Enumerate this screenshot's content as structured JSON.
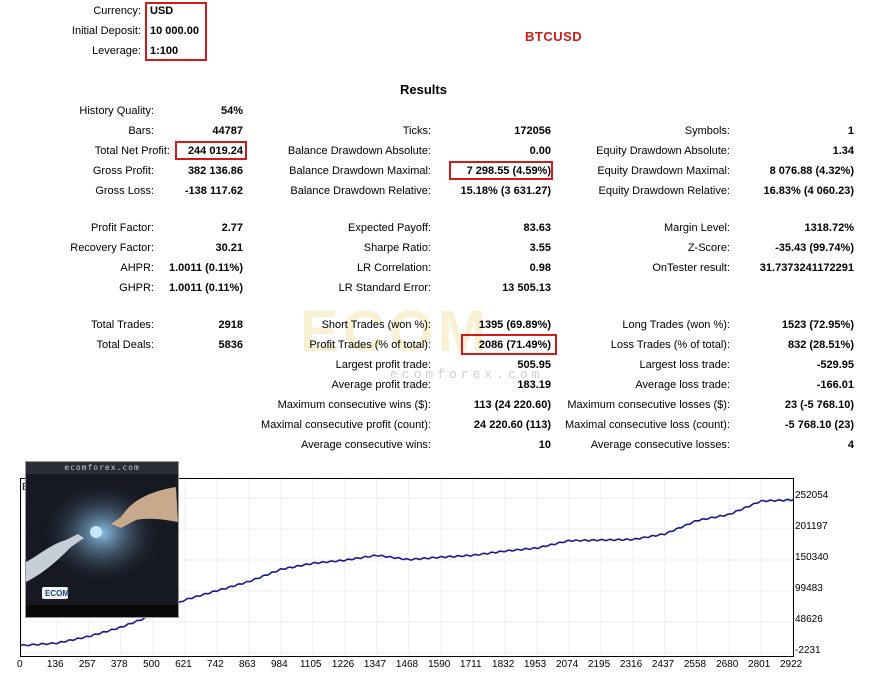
{
  "header": {
    "currency_label": "Currency:",
    "currency_value": "USD",
    "deposit_label": "Initial Deposit:",
    "deposit_value": "10 000.00",
    "leverage_label": "Leverage:",
    "leverage_value": "1:100",
    "symbol": "BTCUSD",
    "results_title": "Results"
  },
  "stats": {
    "history_quality": {
      "label": "History Quality:",
      "value": "54%"
    },
    "bars": {
      "label": "Bars:",
      "value": "44787"
    },
    "ticks": {
      "label": "Ticks:",
      "value": "172056"
    },
    "symbols": {
      "label": "Symbols:",
      "value": "1"
    },
    "total_net_profit": {
      "label": "Total Net Profit:",
      "value": "244 019.24"
    },
    "balance_dd_abs": {
      "label": "Balance Drawdown Absolute:",
      "value": "0.00"
    },
    "equity_dd_abs": {
      "label": "Equity Drawdown Absolute:",
      "value": "1.34"
    },
    "gross_profit": {
      "label": "Gross Profit:",
      "value": "382 136.86"
    },
    "balance_dd_max": {
      "label": "Balance Drawdown Maximal:",
      "value": "7 298.55 (4.59%)"
    },
    "equity_dd_max": {
      "label": "Equity Drawdown Maximal:",
      "value": "8 076.88 (4.32%)"
    },
    "gross_loss": {
      "label": "Gross Loss:",
      "value": "-138 117.62"
    },
    "balance_dd_rel": {
      "label": "Balance Drawdown Relative:",
      "value": "15.18% (3 631.27)"
    },
    "equity_dd_rel": {
      "label": "Equity Drawdown Relative:",
      "value": "16.83% (4 060.23)"
    },
    "profit_factor": {
      "label": "Profit Factor:",
      "value": "2.77"
    },
    "expected_payoff": {
      "label": "Expected Payoff:",
      "value": "83.63"
    },
    "margin_level": {
      "label": "Margin Level:",
      "value": "1318.72%"
    },
    "recovery_factor": {
      "label": "Recovery Factor:",
      "value": "30.21"
    },
    "sharpe_ratio": {
      "label": "Sharpe Ratio:",
      "value": "3.55"
    },
    "z_score": {
      "label": "Z-Score:",
      "value": "-35.43 (99.74%)"
    },
    "ahpr": {
      "label": "AHPR:",
      "value": "1.0011 (0.11%)"
    },
    "lr_correlation": {
      "label": "LR Correlation:",
      "value": "0.98"
    },
    "ontester": {
      "label": "OnTester result:",
      "value": "31.7373241172291"
    },
    "ghpr": {
      "label": "GHPR:",
      "value": "1.0011 (0.11%)"
    },
    "lr_std_error": {
      "label": "LR Standard Error:",
      "value": "13 505.13"
    },
    "total_trades": {
      "label": "Total Trades:",
      "value": "2918"
    },
    "short_trades": {
      "label": "Short Trades (won %):",
      "value": "1395 (69.89%)"
    },
    "long_trades": {
      "label": "Long Trades (won %):",
      "value": "1523 (72.95%)"
    },
    "total_deals": {
      "label": "Total Deals:",
      "value": "5836"
    },
    "profit_trades": {
      "label": "Profit Trades (% of total):",
      "value": "2086 (71.49%)"
    },
    "loss_trades": {
      "label": "Loss Trades (% of total):",
      "value": "832 (28.51%)"
    },
    "largest_profit": {
      "label": "Largest profit trade:",
      "value": "505.95"
    },
    "largest_loss": {
      "label": "Largest loss trade:",
      "value": "-529.95"
    },
    "avg_profit": {
      "label": "Average profit trade:",
      "value": "183.19"
    },
    "avg_loss": {
      "label": "Average loss trade:",
      "value": "-166.01"
    },
    "max_consec_wins": {
      "label": "Maximum consecutive wins ($):",
      "value": "113 (24 220.60)"
    },
    "max_consec_losses": {
      "label": "Maximum consecutive losses ($):",
      "value": "23 (-5 768.10)"
    },
    "maximal_consec_profit": {
      "label": "Maximal consecutive profit (count):",
      "value": "24 220.60 (113)"
    },
    "maximal_consec_loss": {
      "label": "Maximal consecutive loss (count):",
      "value": "-5 768.10 (23)"
    },
    "avg_consec_wins": {
      "label": "Average consecutive wins:",
      "value": "10"
    },
    "avg_consec_losses": {
      "label": "Average consecutive losses:",
      "value": "4"
    }
  },
  "watermark": {
    "big": "ECOM",
    "small": "ecomforex.com"
  },
  "thumbnail": {
    "site": "ecomforex.com",
    "brand": "ECOM"
  },
  "chart_data": {
    "type": "line",
    "title": "",
    "xlabel": "",
    "ylabel": "",
    "x_ticks": [
      "0",
      "136",
      "257",
      "378",
      "500",
      "621",
      "742",
      "863",
      "984",
      "1105",
      "1226",
      "1347",
      "1468",
      "1590",
      "1711",
      "1832",
      "1953",
      "2074",
      "2195",
      "2316",
      "2437",
      "2558",
      "2680",
      "2801",
      "2922"
    ],
    "y_ticks": [
      "252054",
      "201197",
      "150340",
      "99483",
      "48626",
      "-2231"
    ],
    "xlim": [
      0,
      2922
    ],
    "ylim": [
      -2231,
      252054
    ],
    "line_color": "#1a1a8c",
    "series": [
      {
        "x": [
          0,
          136,
          257,
          378,
          500,
          621,
          742,
          863,
          984,
          1105,
          1226,
          1347,
          1468,
          1590,
          1711,
          1832,
          1953,
          2074,
          2195,
          2316,
          2437,
          2558,
          2680,
          2801,
          2922,
          2950
        ],
        "y": [
          10000,
          14000,
          25000,
          40000,
          60000,
          85000,
          100000,
          115000,
          135000,
          145000,
          150000,
          158000,
          151000,
          155000,
          158000,
          165000,
          170000,
          182000,
          183000,
          184000,
          193000,
          215000,
          225000,
          247000,
          249000,
          255000
        ]
      }
    ]
  }
}
